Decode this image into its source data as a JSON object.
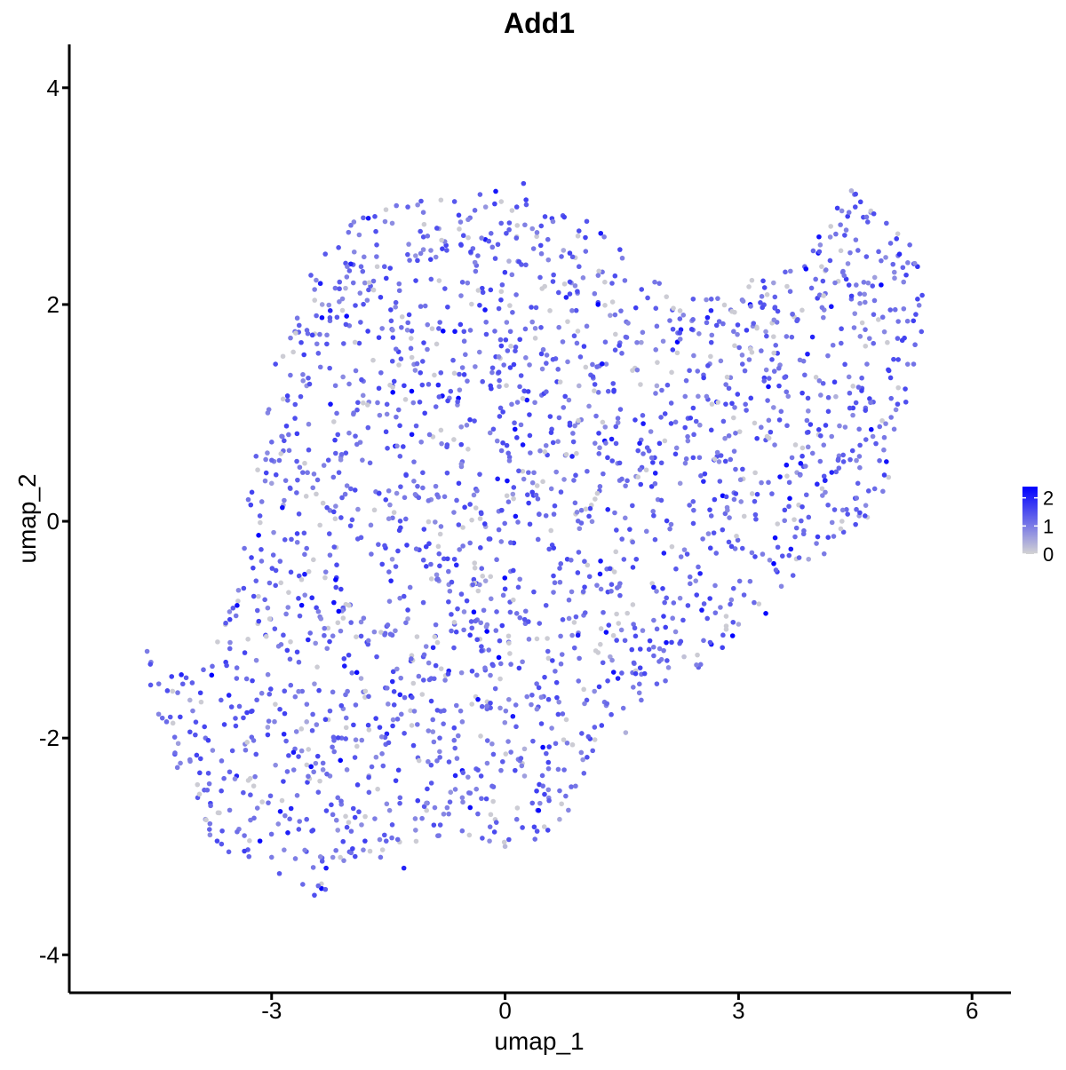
{
  "chart_data": {
    "type": "scatter",
    "title": "Add1",
    "xlabel": "umap_1",
    "ylabel": "umap_2",
    "xlim": [
      -5.6,
      6.5
    ],
    "ylim": [
      -4.35,
      4.4
    ],
    "xticks": [
      -3,
      0,
      3,
      6
    ],
    "yticks": [
      -4,
      -2,
      0,
      2,
      4
    ],
    "xtick_labels": [
      "-3",
      "0",
      "3",
      "6"
    ],
    "ytick_labels": [
      "-4",
      "-2",
      "0",
      "2",
      "4"
    ],
    "grid": false,
    "legend": {
      "placement": "right",
      "type": "colorbar",
      "min": 0,
      "max": 2.4,
      "ticks": [
        0,
        1,
        2
      ],
      "tick_labels": [
        "0",
        "1",
        "2"
      ]
    },
    "colors": {
      "low": "#d3d3d3",
      "high": "#0000ff"
    },
    "cluster_outline": [
      [
        -4.65,
        -1.25
      ],
      [
        -4.35,
        -1.45
      ],
      [
        -4.0,
        -1.35
      ],
      [
        -3.75,
        -1.2
      ],
      [
        -3.5,
        -0.75
      ],
      [
        -3.4,
        -0.15
      ],
      [
        -3.25,
        0.45
      ],
      [
        -3.0,
        1.15
      ],
      [
        -2.75,
        1.85
      ],
      [
        -2.45,
        2.35
      ],
      [
        -2.05,
        2.75
      ],
      [
        -1.45,
        2.95
      ],
      [
        -0.85,
        3.0
      ],
      [
        -0.2,
        3.05
      ],
      [
        0.2,
        3.15
      ],
      [
        0.8,
        2.9
      ],
      [
        1.2,
        2.75
      ],
      [
        1.7,
        2.35
      ],
      [
        2.2,
        2.1
      ],
      [
        2.8,
        2.15
      ],
      [
        3.4,
        2.35
      ],
      [
        4.0,
        2.65
      ],
      [
        4.45,
        3.05
      ],
      [
        4.85,
        2.85
      ],
      [
        5.25,
        2.5
      ],
      [
        5.4,
        2.0
      ],
      [
        5.2,
        1.4
      ],
      [
        5.05,
        0.8
      ],
      [
        4.9,
        0.3
      ],
      [
        4.6,
        -0.05
      ],
      [
        4.15,
        -0.2
      ],
      [
        3.65,
        -0.45
      ],
      [
        3.35,
        -0.7
      ],
      [
        3.05,
        -0.95
      ],
      [
        2.65,
        -1.3
      ],
      [
        2.2,
        -1.45
      ],
      [
        1.9,
        -1.55
      ],
      [
        1.5,
        -1.75
      ],
      [
        1.15,
        -2.15
      ],
      [
        0.95,
        -2.5
      ],
      [
        0.75,
        -2.8
      ],
      [
        0.35,
        -2.95
      ],
      [
        -0.1,
        -3.0
      ],
      [
        -0.5,
        -2.95
      ],
      [
        -0.95,
        -2.95
      ],
      [
        -1.35,
        -3.05
      ],
      [
        -1.75,
        -3.15
      ],
      [
        -2.1,
        -3.3
      ],
      [
        -2.35,
        -3.5
      ],
      [
        -2.65,
        -3.3
      ],
      [
        -3.05,
        -3.15
      ],
      [
        -3.45,
        -3.1
      ],
      [
        -3.9,
        -2.85
      ],
      [
        -4.25,
        -2.35
      ],
      [
        -4.4,
        -1.95
      ]
    ],
    "points": [
      [
        -4.6,
        -1.2,
        1.0
      ],
      [
        -4.55,
        -1.3,
        0.9
      ],
      [
        -4.45,
        -1.5,
        1.1
      ],
      [
        -4.35,
        -1.85,
        1.2
      ],
      [
        -4.2,
        -2.05,
        0.6
      ],
      [
        -4.05,
        -2.2,
        1.0
      ],
      [
        -3.95,
        -2.55,
        1.4
      ],
      [
        -3.85,
        -2.75,
        0.8
      ],
      [
        -3.7,
        -2.95,
        1.6
      ],
      [
        -3.55,
        -3.05,
        1.3
      ],
      [
        -3.35,
        -2.9,
        1.1
      ],
      [
        -3.15,
        -2.95,
        2.3
      ],
      [
        -3.0,
        -3.1,
        1.0
      ],
      [
        -2.9,
        -3.25,
        1.4
      ],
      [
        -2.75,
        -2.65,
        2.0
      ],
      [
        -2.6,
        -3.35,
        1.2
      ],
      [
        -2.45,
        -3.45,
        1.5
      ],
      [
        -2.3,
        -3.2,
        2.1
      ],
      [
        -2.15,
        -2.85,
        0.7
      ],
      [
        -2.0,
        -3.05,
        1.3
      ],
      [
        -3.45,
        -2.35,
        2.0
      ],
      [
        -3.2,
        -2.15,
        1.4
      ],
      [
        -3.05,
        -1.9,
        0.6
      ],
      [
        -2.85,
        -2.4,
        1.6
      ],
      [
        -2.7,
        -2.1,
        1.1
      ],
      [
        -2.55,
        -1.85,
        0.5
      ],
      [
        -2.4,
        -2.5,
        1.3
      ],
      [
        -2.25,
        -2.35,
        0.9
      ],
      [
        -2.1,
        -2.0,
        1.2
      ],
      [
        -1.95,
        -2.65,
        1.5
      ],
      [
        -1.8,
        -2.95,
        1.7
      ],
      [
        -1.6,
        -3.1,
        1.1
      ],
      [
        -1.45,
        -2.8,
        1.4
      ],
      [
        -1.3,
        -3.2,
        2.0
      ],
      [
        -1.15,
        -2.85,
        0.8
      ],
      [
        -1.0,
        -2.6,
        1.2
      ],
      [
        -0.85,
        -2.9,
        1.1
      ],
      [
        -0.7,
        -2.5,
        0.7
      ],
      [
        -0.55,
        -2.3,
        2.2
      ],
      [
        -0.35,
        -2.7,
        1.2
      ],
      [
        -0.2,
        -2.95,
        0.8
      ],
      [
        0.0,
        -3.0,
        0.3
      ],
      [
        0.15,
        -2.75,
        1.1
      ],
      [
        0.35,
        -2.6,
        1.3
      ],
      [
        0.55,
        -2.85,
        1.6
      ],
      [
        0.7,
        -2.75,
        0.5
      ],
      [
        0.85,
        -2.45,
        1.2
      ],
      [
        1.0,
        -2.2,
        0.7
      ],
      [
        1.15,
        -1.9,
        1.3
      ],
      [
        1.3,
        -1.7,
        0.9
      ],
      [
        1.55,
        -1.95,
        0.4
      ],
      [
        1.75,
        -1.65,
        1.1
      ],
      [
        1.95,
        -1.5,
        1.3
      ],
      [
        2.1,
        -1.35,
        0.8
      ],
      [
        2.3,
        -1.25,
        0.2
      ],
      [
        2.55,
        -1.1,
        1.1
      ],
      [
        2.8,
        -1.05,
        1.4
      ],
      [
        3.0,
        -0.95,
        0.5
      ],
      [
        3.2,
        -0.75,
        1.2
      ],
      [
        3.35,
        -0.85,
        2.3
      ],
      [
        3.55,
        -0.6,
        0.9
      ],
      [
        3.7,
        -0.5,
        1.3
      ],
      [
        3.9,
        -0.35,
        0.5
      ],
      [
        4.1,
        -0.3,
        1.0
      ],
      [
        4.35,
        -0.1,
        1.4
      ],
      [
        4.55,
        0.05,
        0.6
      ],
      [
        4.75,
        0.3,
        1.2
      ],
      [
        4.9,
        0.55,
        2.2
      ],
      [
        5.0,
        0.85,
        1.0
      ],
      [
        5.15,
        1.1,
        1.5
      ],
      [
        5.25,
        1.45,
        1.1
      ],
      [
        5.35,
        1.75,
        1.4
      ],
      [
        5.3,
        2.05,
        1.6
      ],
      [
        5.3,
        2.35,
        1.8
      ],
      [
        5.2,
        2.55,
        1.2
      ],
      [
        5.05,
        2.45,
        1.0
      ],
      [
        4.9,
        2.75,
        1.3
      ],
      [
        4.7,
        2.85,
        0.7
      ],
      [
        4.5,
        2.9,
        1.5
      ],
      [
        4.45,
        3.05,
        0.4
      ],
      [
        4.25,
        2.65,
        1.1
      ],
      [
        4.05,
        2.55,
        0.8
      ],
      [
        3.85,
        2.35,
        1.2
      ],
      [
        3.6,
        2.3,
        1.3
      ],
      [
        3.45,
        2.2,
        0.6
      ],
      [
        3.15,
        2.0,
        2.4
      ],
      [
        2.9,
        1.95,
        1.0
      ],
      [
        2.65,
        2.05,
        1.3
      ],
      [
        2.4,
        1.85,
        0.7
      ],
      [
        2.15,
        1.95,
        1.4
      ],
      [
        1.95,
        1.8,
        1.1
      ],
      [
        1.75,
        1.65,
        0.6
      ],
      [
        1.5,
        1.55,
        1.2
      ],
      [
        1.3,
        1.45,
        0.8
      ],
      [
        1.1,
        1.35,
        1.3
      ],
      [
        0.95,
        1.25,
        0.4
      ],
      [
        0.75,
        1.05,
        1.1
      ],
      [
        0.6,
        0.85,
        1.4
      ],
      [
        0.45,
        0.65,
        0.9
      ],
      [
        0.3,
        0.45,
        1.2
      ],
      [
        0.1,
        0.25,
        0.7
      ],
      [
        -0.05,
        0.1,
        1.3
      ],
      [
        -0.25,
        -0.05,
        0.5
      ],
      [
        -0.45,
        -0.2,
        1.1
      ],
      [
        -0.65,
        -0.35,
        1.5
      ],
      [
        -0.85,
        -0.55,
        0.8
      ],
      [
        -1.05,
        -0.75,
        1.3
      ],
      [
        -1.25,
        -0.9,
        0.6
      ],
      [
        -1.45,
        -1.05,
        1.2
      ],
      [
        -1.65,
        -1.25,
        1.4
      ],
      [
        -1.85,
        -1.45,
        0.5
      ],
      [
        -2.05,
        -1.6,
        1.1
      ],
      [
        -2.25,
        -1.75,
        1.3
      ],
      [
        -2.45,
        -1.5,
        0.7
      ],
      [
        -2.65,
        -1.3,
        1.2
      ],
      [
        -2.85,
        -1.05,
        1.4
      ],
      [
        -3.05,
        -0.8,
        0.9
      ],
      [
        -3.2,
        -0.55,
        1.3
      ],
      [
        -3.35,
        -0.25,
        1.1
      ],
      [
        -3.15,
        0.05,
        1.4
      ],
      [
        -3.0,
        0.35,
        0.6
      ],
      [
        -2.85,
        0.65,
        1.2
      ],
      [
        -2.7,
        0.95,
        1.5
      ],
      [
        -2.55,
        1.25,
        0.7
      ],
      [
        -2.4,
        1.55,
        1.3
      ],
      [
        -2.25,
        1.85,
        1.1
      ],
      [
        -2.05,
        2.15,
        0.4
      ],
      [
        -1.85,
        2.35,
        1.2
      ],
      [
        -1.65,
        2.55,
        1.4
      ],
      [
        -1.45,
        2.75,
        0.8
      ],
      [
        -1.25,
        2.9,
        1.3
      ],
      [
        -1.05,
        2.85,
        1.0
      ],
      [
        -0.85,
        2.7,
        0.6
      ],
      [
        -0.65,
        2.95,
        1.4
      ],
      [
        -0.45,
        2.8,
        1.1
      ],
      [
        -0.25,
        2.9,
        0.7
      ],
      [
        -0.05,
        2.75,
        1.3
      ],
      [
        0.15,
        2.9,
        1.5
      ],
      [
        0.35,
        2.7,
        0.8
      ],
      [
        0.55,
        2.6,
        1.2
      ],
      [
        0.75,
        2.5,
        0.5
      ],
      [
        0.95,
        2.35,
        1.3
      ],
      [
        1.15,
        2.1,
        1.0
      ],
      [
        1.35,
        1.9,
        0.6
      ],
      [
        1.55,
        1.7,
        1.2
      ],
      [
        1.25,
        2.3,
        1.1
      ],
      [
        0.85,
        2.2,
        0.8
      ],
      [
        0.45,
        2.25,
        1.3
      ],
      [
        0.05,
        2.4,
        0.4
      ],
      [
        -0.35,
        2.45,
        1.2
      ],
      [
        -0.75,
        2.5,
        1.4
      ],
      [
        -1.15,
        2.45,
        0.7
      ],
      [
        -1.55,
        2.35,
        1.3
      ],
      [
        -1.95,
        2.2,
        1.1
      ],
      [
        -2.35,
        2.0,
        0.6
      ],
      [
        -2.7,
        1.75,
        1.2
      ],
      [
        -2.95,
        1.45,
        1.5
      ],
      [
        -3.05,
        1.0,
        0.9
      ],
      [
        -3.2,
        0.6,
        1.3
      ],
      [
        -3.3,
        0.2,
        1.1
      ],
      [
        -1.2,
        1.2,
        2.4
      ],
      [
        -2.2,
        -0.75,
        2.2
      ],
      [
        -1.35,
        -1.6,
        2.0
      ],
      [
        -0.45,
        -1.05,
        1.8
      ],
      [
        0.1,
        -1.8,
        2.1
      ],
      [
        0.8,
        -0.35,
        1.6
      ],
      [
        1.45,
        -1.45,
        2.0
      ],
      [
        3.5,
        1.55,
        1.6
      ],
      [
        3.95,
        1.7,
        2.0
      ],
      [
        4.35,
        0.55,
        1.4
      ],
      [
        -2.6,
        0.45,
        1.2
      ],
      [
        -2.15,
        0.8,
        1.4
      ],
      [
        -1.75,
        1.1,
        0.9
      ],
      [
        -1.35,
        0.6,
        1.3
      ],
      [
        -0.95,
        0.2,
        0.8
      ],
      [
        -0.55,
        0.55,
        1.2
      ],
      [
        -0.15,
        0.85,
        1.4
      ],
      [
        0.25,
        1.2,
        0.6
      ],
      [
        0.65,
        1.5,
        1.3
      ],
      [
        1.05,
        1.8,
        1.0
      ],
      [
        1.45,
        0.95,
        1.1
      ],
      [
        1.85,
        0.65,
        1.3
      ],
      [
        2.25,
        0.35,
        0.7
      ],
      [
        2.65,
        0.05,
        1.2
      ],
      [
        3.05,
        -0.25,
        1.4
      ],
      [
        2.75,
        0.55,
        0.8
      ],
      [
        2.35,
        0.95,
        1.3
      ],
      [
        1.95,
        1.25,
        0.5
      ],
      [
        2.55,
        1.35,
        1.2
      ],
      [
        2.95,
        1.05,
        1.0
      ],
      [
        3.35,
        0.75,
        1.4
      ],
      [
        3.75,
        0.45,
        0.6
      ],
      [
        4.15,
        0.15,
        1.3
      ],
      [
        4.55,
        0.85,
        1.1
      ],
      [
        4.25,
        1.15,
        0.4
      ],
      [
        3.85,
        1.35,
        1.2
      ],
      [
        3.45,
        1.05,
        0.8
      ],
      [
        3.05,
        1.45,
        1.3
      ],
      [
        2.65,
        1.65,
        1.5
      ],
      [
        4.65,
        1.45,
        1.0
      ],
      [
        4.95,
        1.95,
        1.3
      ],
      [
        4.75,
        2.25,
        0.6
      ],
      [
        4.45,
        2.05,
        1.2
      ],
      [
        4.1,
        1.95,
        0.9
      ],
      [
        3.75,
        1.85,
        1.4
      ],
      [
        3.35,
        1.75,
        0.7
      ],
      [
        -0.95,
        -1.45,
        1.2
      ],
      [
        -0.55,
        -1.85,
        0.9
      ],
      [
        -0.15,
        -2.15,
        1.3
      ],
      [
        0.25,
        -2.35,
        0.6
      ],
      [
        0.65,
        -2.05,
        1.2
      ],
      [
        1.05,
        -1.65,
        1.4
      ],
      [
        1.35,
        -1.25,
        0.5
      ],
      [
        1.65,
        -0.95,
        1.1
      ],
      [
        2.05,
        -0.75,
        1.3
      ],
      [
        2.45,
        -0.55,
        0.8
      ],
      [
        0.55,
        -1.2,
        1.3
      ],
      [
        0.15,
        -0.85,
        1.1
      ],
      [
        -0.25,
        -0.55,
        0.6
      ],
      [
        -0.65,
        -0.95,
        1.2
      ],
      [
        -1.05,
        -1.25,
        1.4
      ],
      [
        -1.45,
        -0.35,
        0.7
      ],
      [
        -1.85,
        -0.15,
        1.3
      ],
      [
        -2.25,
        0.1,
        1.0
      ],
      [
        -2.55,
        -0.25,
        1.2
      ],
      [
        -2.85,
        0.15,
        0.5
      ],
      [
        -3.65,
        -1.65,
        1.3
      ],
      [
        -3.85,
        -2.0,
        1.1
      ],
      [
        -4.05,
        -1.65,
        0.4
      ],
      [
        -3.45,
        -1.45,
        1.2
      ],
      [
        -3.25,
        -1.75,
        1.5
      ],
      [
        -2.95,
        -2.25,
        0.8
      ],
      [
        -2.55,
        -2.75,
        1.3
      ],
      [
        -2.15,
        -2.55,
        1.1
      ],
      [
        -1.75,
        -2.35,
        0.6
      ],
      [
        -1.35,
        -2.55,
        1.2
      ],
      [
        -0.95,
        -2.25,
        1.4
      ],
      [
        -0.55,
        -2.55,
        0.9
      ],
      [
        -0.15,
        -2.45,
        1.3
      ],
      [
        0.25,
        -2.1,
        0.4
      ]
    ]
  }
}
